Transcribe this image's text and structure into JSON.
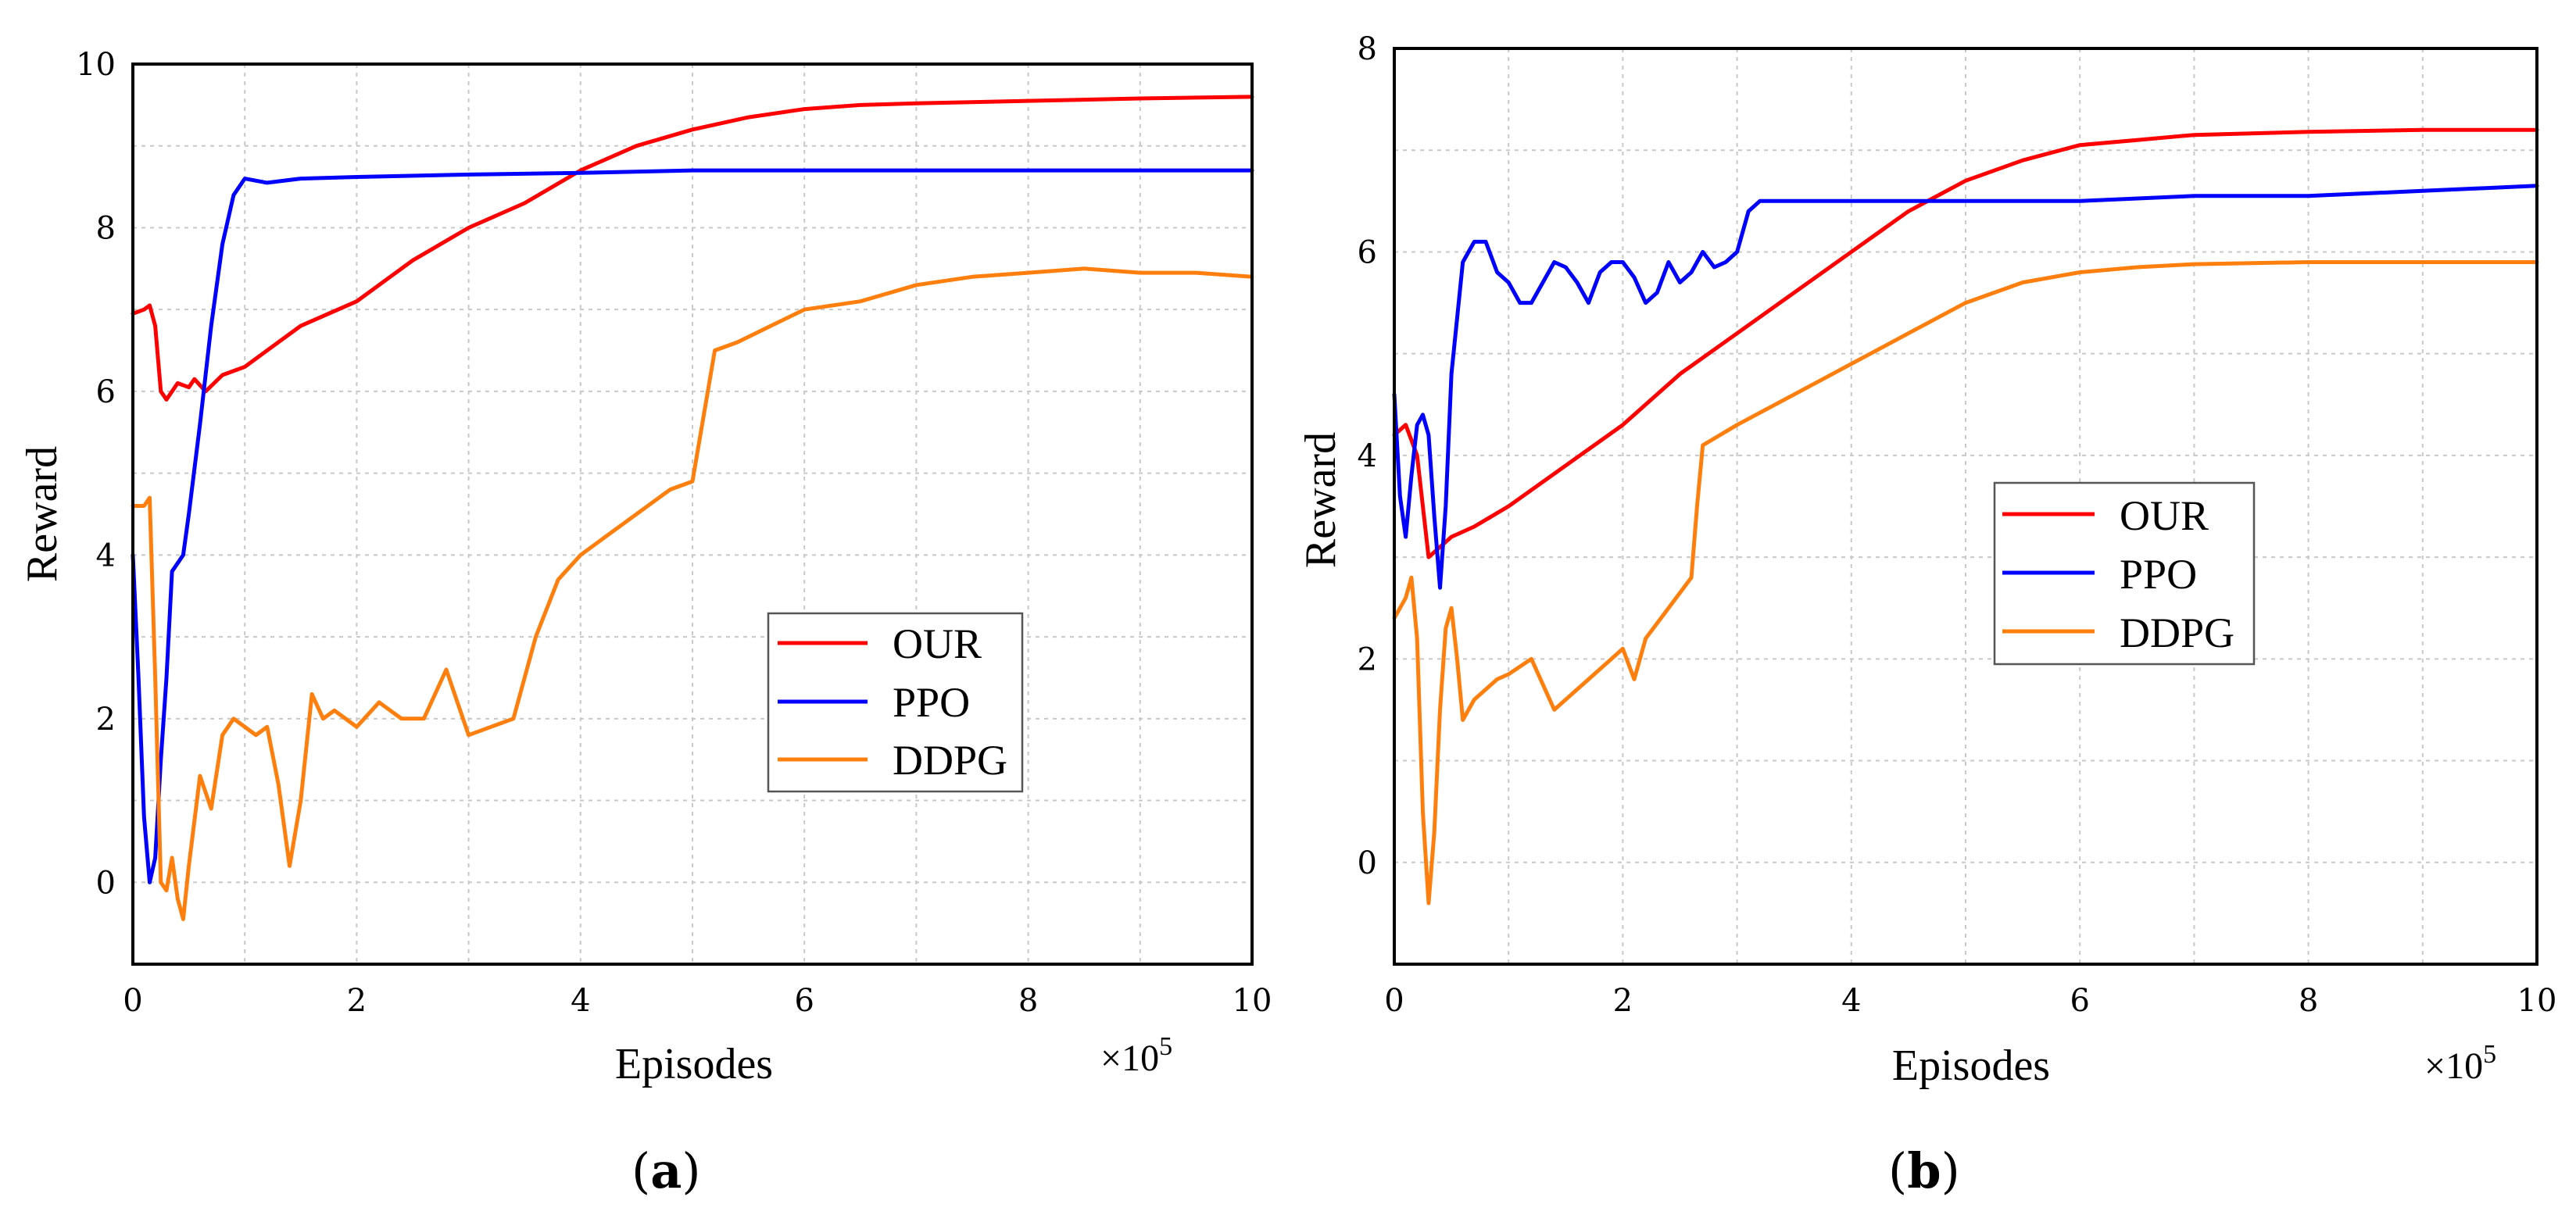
{
  "colors": {
    "OUR": "#ff0000",
    "PPO": "#0000ff",
    "DDPG": "#ff7f0e",
    "axis": "#000000",
    "grid": "#c8c8c8"
  },
  "chart_data": [
    {
      "type": "line",
      "caption_open": "(",
      "caption_letter": "a",
      "caption_close": ")",
      "xlabel": "Episodes",
      "ylabel": "Reward",
      "x_scale_prefix": "×10",
      "x_scale_exp": "5",
      "xlim": [
        0,
        10
      ],
      "ylim": [
        -1,
        10
      ],
      "xticks": [
        "0",
        "2",
        "4",
        "6",
        "8",
        "10"
      ],
      "yticks": [
        "0",
        "2",
        "4",
        "6",
        "8",
        "10"
      ],
      "grid": true,
      "legend_position": "center-right",
      "series": [
        {
          "name": "OUR",
          "x": [
            0,
            0.1,
            0.15,
            0.2,
            0.25,
            0.3,
            0.4,
            0.5,
            0.55,
            0.65,
            0.8,
            1.0,
            1.2,
            1.5,
            2.0,
            2.5,
            3.0,
            3.5,
            4.0,
            4.5,
            5.0,
            5.5,
            6.0,
            6.5,
            7.0,
            8.0,
            9.0,
            10.0
          ],
          "y": [
            6.95,
            7.0,
            7.05,
            6.8,
            6.0,
            5.9,
            6.1,
            6.05,
            6.15,
            6.0,
            6.2,
            6.3,
            6.5,
            6.8,
            7.1,
            7.6,
            8.0,
            8.3,
            8.7,
            9.0,
            9.2,
            9.35,
            9.45,
            9.5,
            9.52,
            9.55,
            9.58,
            9.6
          ]
        },
        {
          "name": "PPO",
          "x": [
            0,
            0.05,
            0.1,
            0.15,
            0.2,
            0.25,
            0.3,
            0.35,
            0.4,
            0.45,
            0.5,
            0.6,
            0.7,
            0.8,
            0.9,
            1.0,
            1.2,
            1.5,
            2.0,
            3.0,
            4.0,
            5.0,
            6.0,
            7.0,
            8.0,
            9.0,
            10.0
          ],
          "y": [
            4.0,
            2.5,
            0.8,
            0.0,
            0.3,
            1.5,
            2.5,
            3.8,
            3.9,
            4.0,
            4.5,
            5.6,
            6.8,
            7.8,
            8.4,
            8.6,
            8.55,
            8.6,
            8.62,
            8.65,
            8.67,
            8.7,
            8.7,
            8.7,
            8.7,
            8.7,
            8.7
          ]
        },
        {
          "name": "DDPG",
          "x": [
            0,
            0.1,
            0.15,
            0.2,
            0.25,
            0.3,
            0.35,
            0.4,
            0.45,
            0.5,
            0.6,
            0.7,
            0.8,
            0.9,
            1.0,
            1.1,
            1.2,
            1.3,
            1.4,
            1.5,
            1.6,
            1.7,
            1.8,
            2.0,
            2.2,
            2.4,
            2.6,
            2.8,
            3.0,
            3.2,
            3.4,
            3.6,
            3.8,
            4.0,
            4.2,
            4.5,
            4.8,
            5.0,
            5.2,
            5.4,
            5.7,
            6.0,
            6.5,
            7.0,
            7.5,
            8.0,
            8.5,
            9.0,
            9.5,
            10.0
          ],
          "y": [
            4.6,
            4.6,
            4.7,
            2.5,
            0.0,
            -0.1,
            0.3,
            -0.2,
            -0.45,
            0.2,
            1.3,
            0.9,
            1.8,
            2.0,
            1.9,
            1.8,
            1.9,
            1.2,
            0.2,
            1.0,
            2.3,
            2.0,
            2.1,
            1.9,
            2.2,
            2.0,
            2.0,
            2.6,
            1.8,
            1.9,
            2.0,
            3.0,
            3.7,
            4.0,
            4.2,
            4.5,
            4.8,
            4.9,
            6.5,
            6.6,
            6.8,
            7.0,
            7.1,
            7.3,
            7.4,
            7.45,
            7.5,
            7.45,
            7.45,
            7.4
          ]
        }
      ]
    },
    {
      "type": "line",
      "caption_open": "(",
      "caption_letter": "b",
      "caption_close": ")",
      "xlabel": "Episodes",
      "ylabel": "Reward",
      "x_scale_prefix": "×10",
      "x_scale_exp": "5",
      "xlim": [
        0,
        10
      ],
      "ylim": [
        -1,
        8
      ],
      "xticks": [
        "0",
        "2",
        "4",
        "6",
        "8",
        "10"
      ],
      "yticks": [
        "0",
        "2",
        "4",
        "6",
        "8"
      ],
      "grid": true,
      "legend_position": "center",
      "series": [
        {
          "name": "OUR",
          "x": [
            0,
            0.1,
            0.2,
            0.3,
            0.4,
            0.5,
            0.7,
            1.0,
            1.5,
            2.0,
            2.5,
            3.0,
            3.5,
            4.0,
            4.5,
            5.0,
            5.5,
            6.0,
            6.5,
            7.0,
            8.0,
            9.0,
            10.0
          ],
          "y": [
            4.2,
            4.3,
            4.0,
            3.0,
            3.1,
            3.2,
            3.3,
            3.5,
            3.9,
            4.3,
            4.8,
            5.2,
            5.6,
            6.0,
            6.4,
            6.7,
            6.9,
            7.05,
            7.1,
            7.15,
            7.18,
            7.2,
            7.2
          ]
        },
        {
          "name": "PPO",
          "x": [
            0,
            0.05,
            0.1,
            0.15,
            0.2,
            0.25,
            0.3,
            0.35,
            0.4,
            0.45,
            0.5,
            0.6,
            0.7,
            0.8,
            0.9,
            1.0,
            1.1,
            1.2,
            1.3,
            1.4,
            1.5,
            1.6,
            1.7,
            1.8,
            1.9,
            2.0,
            2.1,
            2.2,
            2.3,
            2.4,
            2.5,
            2.6,
            2.7,
            2.8,
            2.9,
            3.0,
            3.1,
            3.2,
            3.3,
            3.4,
            3.5,
            4.0,
            5.0,
            6.0,
            7.0,
            8.0,
            9.0,
            10.0
          ],
          "y": [
            4.6,
            3.6,
            3.2,
            3.8,
            4.3,
            4.4,
            4.2,
            3.4,
            2.7,
            3.5,
            4.8,
            5.9,
            6.1,
            6.1,
            5.8,
            5.7,
            5.5,
            5.5,
            5.7,
            5.9,
            5.85,
            5.7,
            5.5,
            5.8,
            5.9,
            5.9,
            5.75,
            5.5,
            5.6,
            5.9,
            5.7,
            5.8,
            6.0,
            5.85,
            5.9,
            6.0,
            6.4,
            6.5,
            6.5,
            6.5,
            6.5,
            6.5,
            6.5,
            6.5,
            6.55,
            6.55,
            6.6,
            6.65
          ]
        },
        {
          "name": "DDPG",
          "x": [
            0,
            0.1,
            0.15,
            0.2,
            0.25,
            0.3,
            0.35,
            0.4,
            0.45,
            0.5,
            0.55,
            0.6,
            0.7,
            0.8,
            0.9,
            1.0,
            1.2,
            1.4,
            1.5,
            1.6,
            1.8,
            2.0,
            2.1,
            2.2,
            2.4,
            2.6,
            2.65,
            2.7,
            3.0,
            3.5,
            4.0,
            4.5,
            5.0,
            5.5,
            6.0,
            6.5,
            7.0,
            8.0,
            9.0,
            10.0
          ],
          "y": [
            2.4,
            2.6,
            2.8,
            2.2,
            0.5,
            -0.4,
            0.3,
            1.5,
            2.3,
            2.5,
            2.0,
            1.4,
            1.6,
            1.7,
            1.8,
            1.85,
            2.0,
            1.5,
            1.6,
            1.7,
            1.9,
            2.1,
            1.8,
            2.2,
            2.5,
            2.8,
            3.5,
            4.1,
            4.3,
            4.6,
            4.9,
            5.2,
            5.5,
            5.7,
            5.8,
            5.85,
            5.88,
            5.9,
            5.9,
            5.9
          ]
        }
      ]
    }
  ]
}
